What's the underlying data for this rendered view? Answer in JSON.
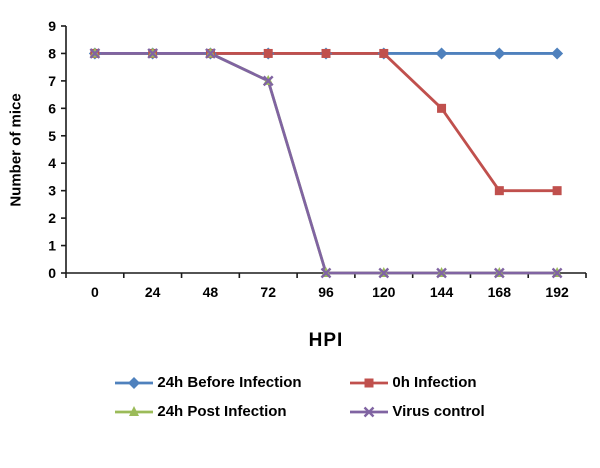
{
  "chart_data": {
    "type": "line",
    "x": [
      0,
      24,
      48,
      72,
      96,
      120,
      144,
      168,
      192
    ],
    "xlabel": "HPI",
    "ylabel": "Number of mice",
    "ylim": [
      0,
      9
    ],
    "ytick_step": 1,
    "grid": false,
    "legend_position": "bottom",
    "series": [
      {
        "name": "24h Before Infection",
        "marker": "diamond",
        "color": "#4F81BD",
        "values": [
          8,
          8,
          8,
          8,
          8,
          8,
          8,
          8,
          8
        ]
      },
      {
        "name": "0h Infection",
        "marker": "square",
        "color": "#C0504D",
        "values": [
          8,
          8,
          8,
          8,
          8,
          8,
          6,
          3,
          3
        ]
      },
      {
        "name": "24h Post Infection",
        "marker": "triangle",
        "color": "#9BBB59",
        "values": [
          8,
          8,
          8,
          7,
          0,
          0,
          0,
          0,
          0
        ]
      },
      {
        "name": "Virus control",
        "marker": "x",
        "color": "#8064A2",
        "values": [
          8,
          8,
          8,
          7,
          0,
          0,
          0,
          0,
          0
        ]
      }
    ]
  }
}
